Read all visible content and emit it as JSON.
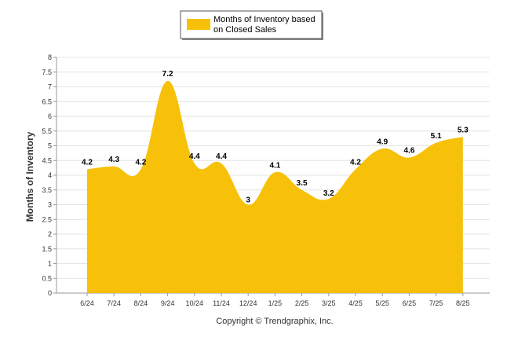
{
  "chart_data": {
    "type": "area",
    "title": "",
    "xlabel": "",
    "ylabel": "Months of Inventory",
    "categories": [
      "6/24",
      "7/24",
      "8/24",
      "9/24",
      "10/24",
      "11/24",
      "12/24",
      "1/25",
      "2/25",
      "3/25",
      "4/25",
      "5/25",
      "6/25",
      "7/25",
      "8/25"
    ],
    "series": [
      {
        "name_lines": [
          "Months of Inventory based",
          "on Closed Sales"
        ],
        "values": [
          4.2,
          4.3,
          4.2,
          7.2,
          4.4,
          4.4,
          3,
          4.1,
          3.5,
          3.2,
          4.2,
          4.9,
          4.6,
          5.1,
          5.3
        ],
        "color": "#F7C10A"
      }
    ],
    "ylim": [
      0,
      8
    ],
    "yticks": [
      "0",
      "0.5",
      "1",
      "1.5",
      "2",
      "2.5",
      "3",
      "3.5",
      "4",
      "4.5",
      "5",
      "5.5",
      "6",
      "6.5",
      "7",
      "7.5",
      "8"
    ],
    "grid": true,
    "legend_position": "top-center",
    "footer": "Copyright © Trendgraphix, Inc."
  }
}
